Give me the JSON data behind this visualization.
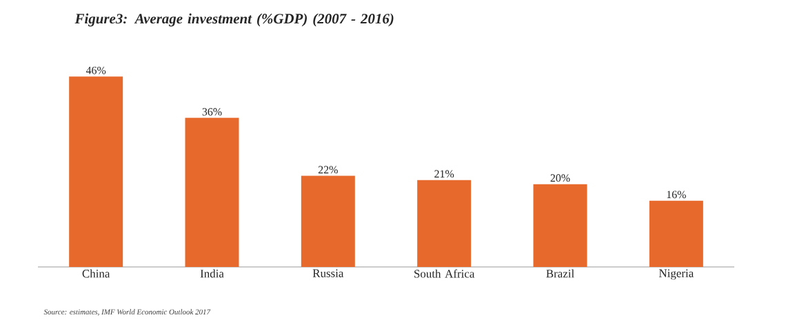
{
  "chart_data": {
    "type": "bar",
    "title": "Figure3: Average investment (%GDP) (2007 - 2016)",
    "categories": [
      "China",
      "India",
      "Russia",
      "South Africa",
      "Brazil",
      "Nigeria"
    ],
    "values": [
      46,
      36,
      22,
      21,
      20,
      16
    ],
    "value_labels": [
      "46%",
      "36%",
      "22%",
      "21%",
      "20%",
      "16%"
    ],
    "color": "#e8692c",
    "annotations": [
      "Source: estimates, IMF World Economic Outlook 2017"
    ]
  }
}
